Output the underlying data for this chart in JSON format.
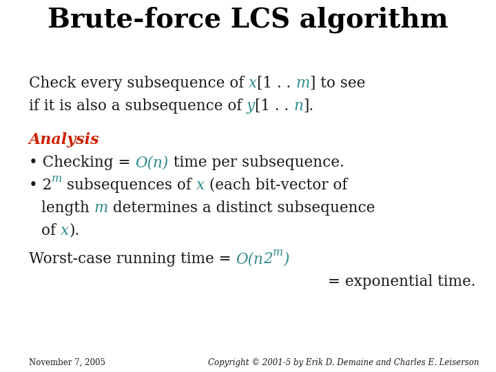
{
  "title": "Brute-force LCS algorithm",
  "title_color": "#000000",
  "title_fontsize": 28,
  "background_color": "#ffffff",
  "teal_color": "#2e8b8b",
  "red_color": "#cc2200",
  "black_color": "#1a1a1a",
  "footer_left": "November 7, 2005",
  "footer_right": "Copyright © 2001-5 by Erik D. Demaine and Charles E. Leiserson",
  "footer_fontsize": 8.5,
  "body_fontsize": 15.5,
  "fig_width": 7.2,
  "fig_height": 5.4,
  "fig_dpi": 100
}
